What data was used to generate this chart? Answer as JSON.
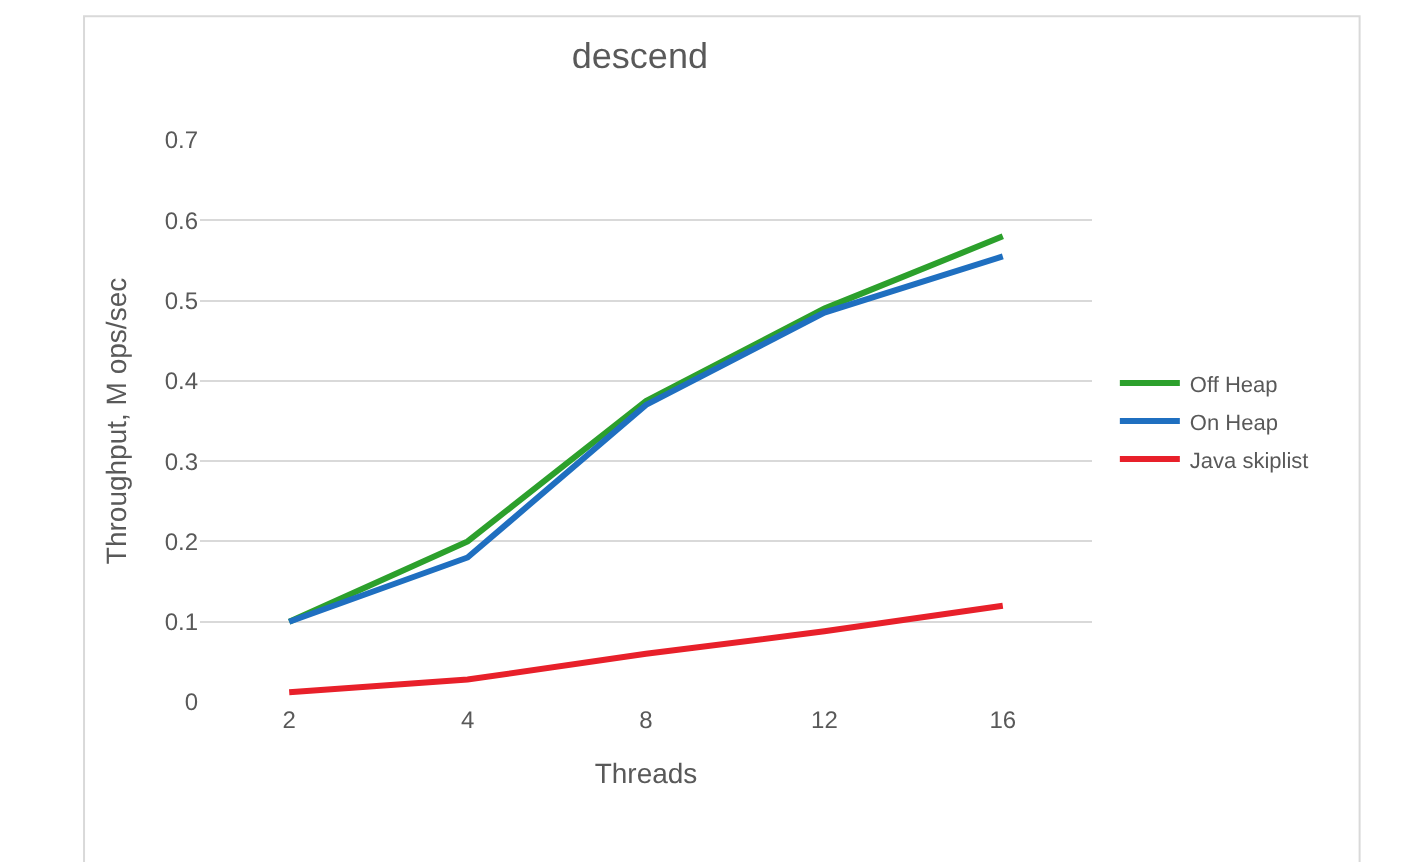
{
  "chart_data": {
    "type": "line",
    "title": "descend",
    "xlabel": "Threads",
    "ylabel": "Throughput, M ops/sec",
    "categories": [
      "2",
      "4",
      "8",
      "12",
      "16"
    ],
    "series": [
      {
        "name": "Off Heap",
        "color": "#2ca02c",
        "values": [
          0.1,
          0.2,
          0.375,
          0.49,
          0.58
        ]
      },
      {
        "name": "On Heap",
        "color": "#1f6fc0",
        "values": [
          0.1,
          0.18,
          0.37,
          0.485,
          0.555
        ]
      },
      {
        "name": "Java skiplist",
        "color": "#e8202a",
        "values": [
          0.012,
          0.028,
          0.06,
          0.088,
          0.12
        ]
      }
    ],
    "ylim": [
      0,
      0.7
    ],
    "yticks": [
      0,
      0.1,
      0.2,
      0.3,
      0.4,
      0.5,
      0.6,
      0.7
    ],
    "grid": "y",
    "legend": "right",
    "marker": "none",
    "line_style": "solid"
  }
}
